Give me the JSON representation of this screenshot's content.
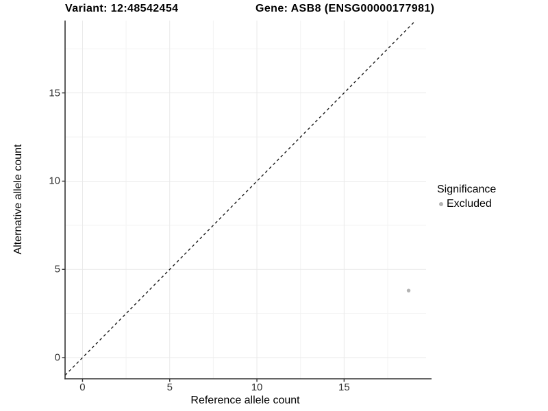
{
  "title": {
    "variant": "Variant: 12:48542454",
    "gene": "Gene: ASB8 (ENSG00000177981)"
  },
  "chart_data": {
    "type": "scatter",
    "title": "Variant: 12:48542454   Gene: ASB8 (ENSG00000177981)",
    "xlabel": "Reference allele count",
    "ylabel": "Alternative allele count",
    "xlim": [
      -1.0,
      19.7
    ],
    "ylim": [
      -1.2,
      19.1
    ],
    "x_ticks": [
      0,
      5,
      10,
      15
    ],
    "y_ticks": [
      0,
      5,
      10,
      15
    ],
    "x_minor_ticks": [
      2.5,
      7.5,
      12.5,
      17.5
    ],
    "y_minor_ticks": [
      2.5,
      7.5,
      12.5,
      17.5
    ],
    "grid": "major and minor gridlines on white panel",
    "reference_line": {
      "slope": 1,
      "intercept": 0,
      "style": "dashed"
    },
    "series": [
      {
        "name": "Excluded",
        "marker": "circle",
        "color": "#b3b3b3",
        "points": [
          {
            "x": 18.7,
            "y": 3.8
          }
        ]
      }
    ],
    "legend": {
      "title": "Significance",
      "position": "right",
      "entries": [
        {
          "label": "Excluded",
          "color": "#b3b3b3"
        }
      ]
    },
    "colors": {
      "axis_line": "#333333",
      "tick_text": "#333333",
      "grid_major": "#e9e9e9",
      "grid_minor": "#f3f3f3",
      "reference_line": "#1a1a1a",
      "point": "#b3b3b3",
      "text": "#000000"
    }
  }
}
